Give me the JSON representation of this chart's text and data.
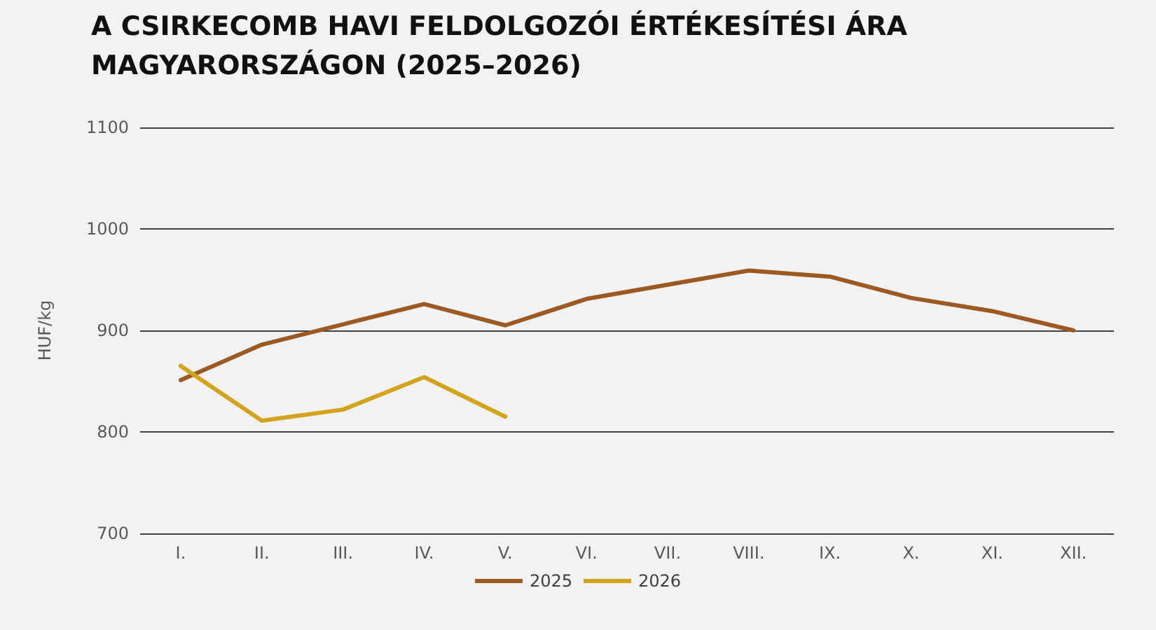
{
  "chart_data": {
    "type": "line",
    "title": "A CSIRKECOMB HAVI FELDOLGOZÓI ÉRTÉKESÍTÉSI ÁRA\nMAGYARORSZÁGON (2025–2026)",
    "ylabel": "HUF/kg",
    "categories": [
      "I.",
      "II.",
      "III.",
      "IV.",
      "V.",
      "VI.",
      "VII.",
      "VIII.",
      "IX.",
      "X.",
      "XI.",
      "XII."
    ],
    "series": [
      {
        "name": "2025",
        "color": "#9c5a22",
        "values": [
          851,
          886,
          906,
          926,
          905,
          931,
          945,
          959,
          953,
          932,
          919,
          900
        ]
      },
      {
        "name": "2026",
        "color": "#d4a31e",
        "values": [
          865,
          811,
          822,
          854,
          815,
          null,
          null,
          null,
          null,
          null,
          null,
          null
        ]
      }
    ],
    "ylim": [
      700,
      1100
    ],
    "yticks": [
      700,
      800,
      900,
      1000,
      1100
    ],
    "grid": "y",
    "legend": "bottom",
    "marker": "none",
    "line_style": "solid"
  }
}
